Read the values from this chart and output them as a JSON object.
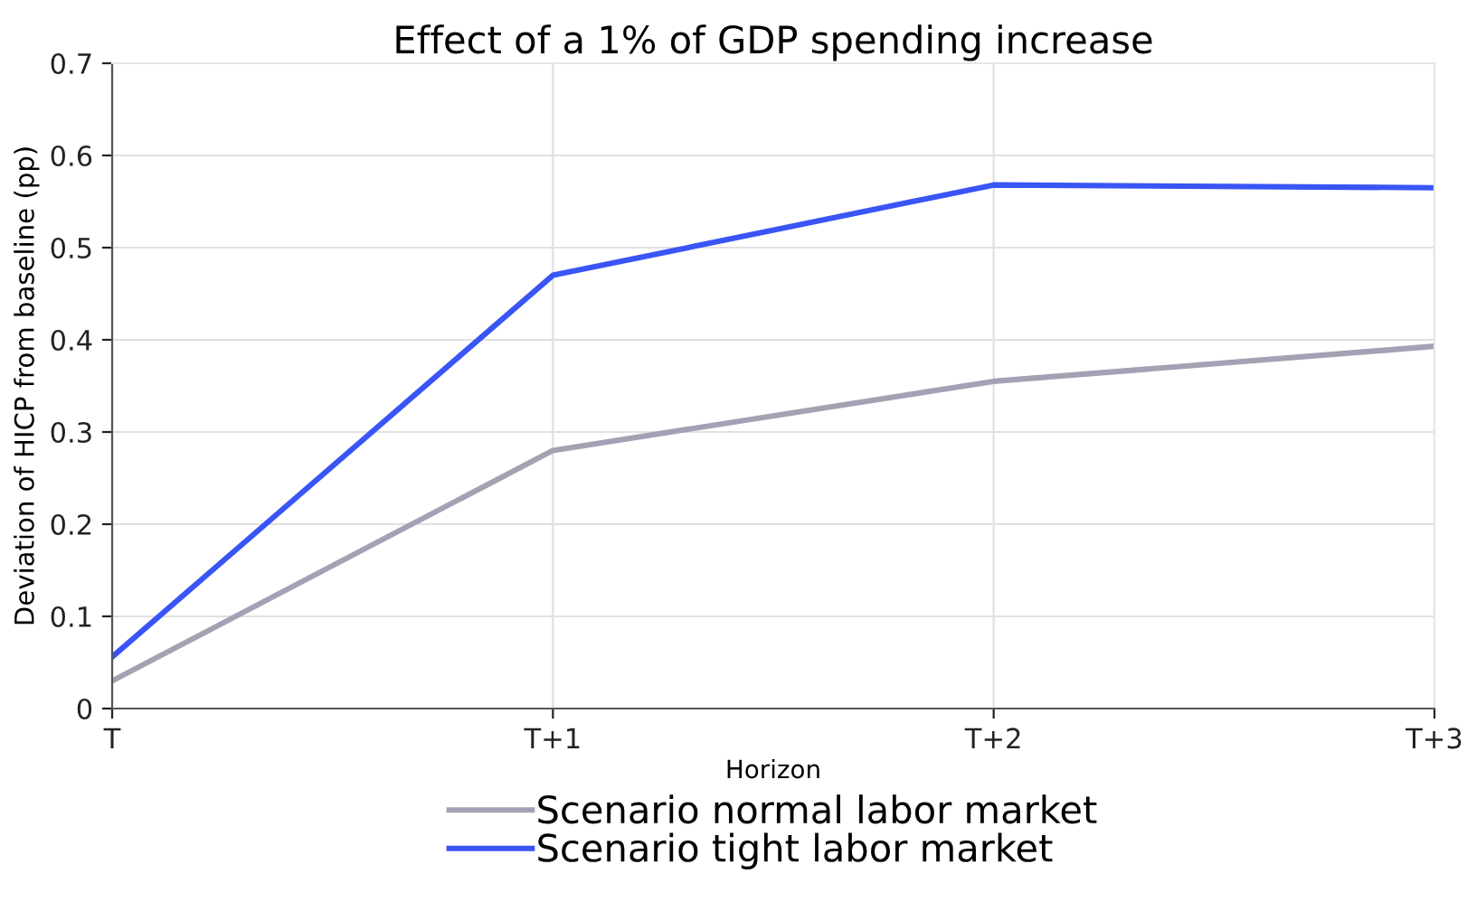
{
  "chart_data": {
    "type": "line",
    "title": "Effect of a 1% of GDP spending increase",
    "xlabel": "Horizon",
    "ylabel": "Deviation of HICP from baseline (pp)",
    "categories": [
      "T",
      "T+1",
      "T+2",
      "T+3"
    ],
    "series": [
      {
        "name": "Scenario normal labor market",
        "color": "#a3a1b3",
        "values": [
          0.03,
          0.28,
          0.355,
          0.393
        ]
      },
      {
        "name": "Scenario tight labor market",
        "color": "#3a55f5",
        "values": [
          0.056,
          0.47,
          0.568,
          0.565
        ]
      }
    ],
    "ylim": [
      0,
      0.7
    ],
    "yticks": [
      0,
      0.1,
      0.2,
      0.3,
      0.4,
      0.5,
      0.6,
      0.7
    ],
    "grid": true,
    "legend": "bottom",
    "line_style": "solid",
    "marker": "none"
  }
}
